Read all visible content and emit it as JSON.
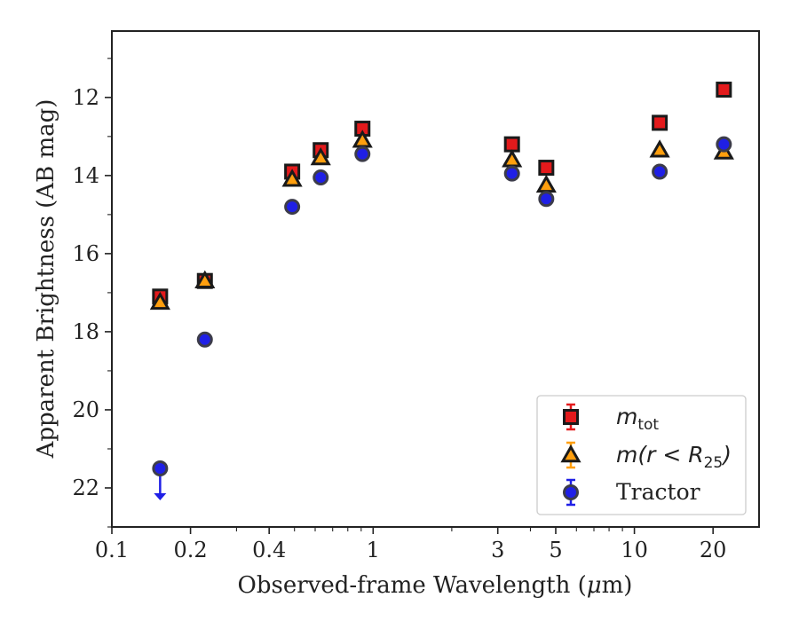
{
  "chart_data": {
    "type": "scatter",
    "xlabel_main": "Observed-frame Wavelength (",
    "xlabel_mu": "μ",
    "xlabel_end": "m)",
    "ylabel": "Apparent Brightness (AB mag)",
    "xscale": "log",
    "xlim": [
      0.1,
      30
    ],
    "ylim": [
      23.0,
      10.3
    ],
    "y_inverted": true,
    "grid": false,
    "legend_position": "lower-right",
    "x_ticks": [
      0.1,
      0.2,
      0.4,
      1,
      3,
      5,
      10,
      20
    ],
    "x_tick_labels": [
      "0.1",
      "0.2",
      "0.4",
      "1",
      "3",
      "5",
      "10",
      "20"
    ],
    "y_ticks": [
      12,
      14,
      16,
      18,
      20,
      22
    ],
    "y_tick_labels": [
      "12",
      "14",
      "16",
      "18",
      "20",
      "22"
    ],
    "series": [
      {
        "legend_text": "m_tot",
        "legend_main": "m",
        "legend_sub": "tot",
        "legend_close": "",
        "marker": "square",
        "color": "#e31a1c",
        "points": [
          {
            "x": 0.153,
            "y": 17.1
          },
          {
            "x": 0.227,
            "y": 16.7
          },
          {
            "x": 0.49,
            "y": 13.9
          },
          {
            "x": 0.63,
            "y": 13.35
          },
          {
            "x": 0.91,
            "y": 12.8
          },
          {
            "x": 3.4,
            "y": 13.2
          },
          {
            "x": 4.6,
            "y": 13.8
          },
          {
            "x": 12.5,
            "y": 12.65
          },
          {
            "x": 22.0,
            "y": 11.8
          }
        ]
      },
      {
        "legend_text": "m(r < R_25)",
        "legend_main": "m(r < R",
        "legend_sub": "25",
        "legend_close": ")",
        "marker": "triangle",
        "color": "#ff9f0e",
        "points": [
          {
            "x": 0.153,
            "y": 17.25
          },
          {
            "x": 0.227,
            "y": 16.7
          },
          {
            "x": 0.49,
            "y": 14.1
          },
          {
            "x": 0.63,
            "y": 13.55
          },
          {
            "x": 0.91,
            "y": 13.1
          },
          {
            "x": 3.4,
            "y": 13.6
          },
          {
            "x": 4.6,
            "y": 14.25
          },
          {
            "x": 12.5,
            "y": 13.35
          },
          {
            "x": 22.0,
            "y": 13.4
          }
        ]
      },
      {
        "legend_text": "Tractor",
        "legend_main": "Tractor",
        "legend_sub": "",
        "legend_close": "",
        "marker": "circle",
        "color": "#1f1fe6",
        "points": [
          {
            "x": 0.153,
            "y": 21.5,
            "upper_limit": true
          },
          {
            "x": 0.227,
            "y": 18.2
          },
          {
            "x": 0.49,
            "y": 14.8
          },
          {
            "x": 0.63,
            "y": 14.05
          },
          {
            "x": 0.91,
            "y": 13.45
          },
          {
            "x": 3.4,
            "y": 13.95
          },
          {
            "x": 4.6,
            "y": 14.6
          },
          {
            "x": 12.5,
            "y": 13.9
          },
          {
            "x": 22.0,
            "y": 13.2
          }
        ]
      }
    ]
  }
}
